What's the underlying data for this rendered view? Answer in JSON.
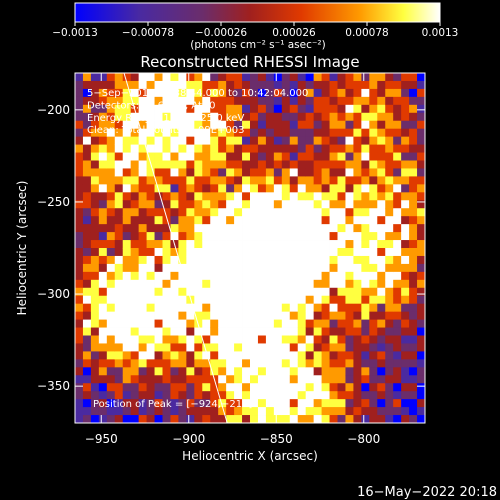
{
  "chart_data": {
    "type": "heatmap",
    "title": "Reconstructed RHESSI Image",
    "xlabel": "Heliocentric X (arcsec)",
    "ylabel": "Heliocentric Y (arcsec)",
    "xlim": [
      -965,
      -765
    ],
    "ylim": [
      -370,
      -180
    ],
    "x_ticks": [
      -950,
      -900,
      -850,
      -800
    ],
    "x_tick_labels": [
      "−950",
      "−900",
      "−850",
      "−800"
    ],
    "y_ticks": [
      -200,
      -250,
      -300,
      -350
    ],
    "y_tick_labels": [
      "−200",
      "−250",
      "−300",
      "−350"
    ],
    "colorbar": {
      "range": [
        -0.0013,
        0.0013
      ],
      "ticks": [
        -0.0013,
        -0.00078,
        -0.00026,
        0.00026,
        0.00078,
        0.0013
      ],
      "tick_labels": [
        "−0.0013",
        "−0.00078",
        "−0.00026",
        "0.00026",
        "0.00078",
        "0.0013"
      ],
      "unit_label": "(photons cm⁻² s⁻¹ asec⁻²)",
      "colors": [
        "#0000ff",
        "#4a2aa0",
        "#6b2d6b",
        "#a0201e",
        "#e03a00",
        "#ff9a00",
        "#ffff40",
        "#ffffff"
      ]
    },
    "annotations": [
      "5−Sep−2014 10:38:44.000 to 10:42:04.000",
      "Detectors: 3F 6F 9F, Att 0",
      "Energy Range: 12.0 − 25.0 keV",
      "Clean: Total counts: 1.09E+003"
    ],
    "peak_label": "Position of Peak = [−924,−216]",
    "peak": [
      -924,
      -216
    ],
    "limb_line": [
      [
        -937,
        -180
      ],
      [
        -878,
        -370
      ]
    ],
    "hotspots": [
      {
        "x": -915,
        "y": -195,
        "w": 1.0
      },
      {
        "x": -940,
        "y": -230,
        "w": 0.8
      },
      {
        "x": -935,
        "y": -300,
        "w": 0.9
      },
      {
        "x": -928,
        "y": -318,
        "w": 0.8
      },
      {
        "x": -885,
        "y": -280,
        "w": 0.8
      },
      {
        "x": -860,
        "y": -290,
        "w": 1.0
      },
      {
        "x": -852,
        "y": -275,
        "w": 0.9
      },
      {
        "x": -840,
        "y": -260,
        "w": 0.8
      },
      {
        "x": -868,
        "y": -325,
        "w": 0.7
      },
      {
        "x": -830,
        "y": -355,
        "w": 0.8
      },
      {
        "x": -795,
        "y": -290,
        "w": 0.9
      },
      {
        "x": -785,
        "y": -250,
        "w": 0.7
      },
      {
        "x": -800,
        "y": -200,
        "w": 0.7
      },
      {
        "x": -890,
        "y": -215,
        "w": 0.6
      },
      {
        "x": -860,
        "y": -355,
        "w": 0.7
      }
    ]
  },
  "footer": {
    "timestamp": "16−May−2022 20:18"
  }
}
